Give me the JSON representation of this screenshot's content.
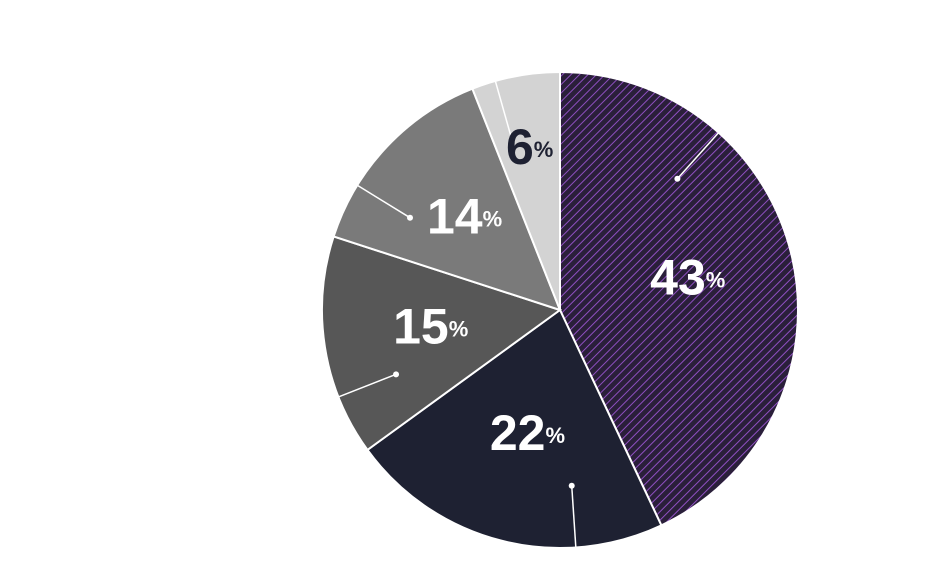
{
  "chart_data": {
    "type": "pie",
    "values": [
      43,
      22,
      15,
      14,
      6
    ],
    "unit": "%",
    "colors": [
      "#2a1f3a",
      "#1e2132",
      "#575757",
      "#7a7a7a",
      "#d3d3d3"
    ],
    "hatch_color": "#8e4fc0",
    "label_colors": [
      "#ffffff",
      "#ffffff",
      "#ffffff",
      "#ffffff",
      "#1e2132"
    ]
  }
}
